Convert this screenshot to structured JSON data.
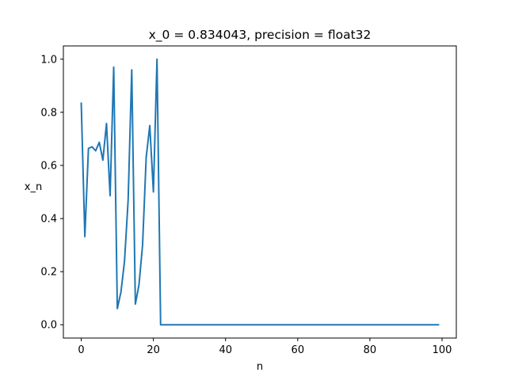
{
  "chart_data": {
    "type": "line",
    "title": "x_0 = 0.834043, precision = float32",
    "xlabel": "n",
    "ylabel": "x_n",
    "xlim": [
      -4.95,
      103.95
    ],
    "ylim": [
      -0.05,
      1.05
    ],
    "xticks": [
      0,
      20,
      40,
      60,
      80,
      100
    ],
    "yticks": [
      0.0,
      0.2,
      0.4,
      0.6,
      0.8,
      1.0
    ],
    "xtick_labels": [
      "0",
      "20",
      "40",
      "60",
      "80",
      "100"
    ],
    "ytick_labels": [
      "0.0",
      "0.2",
      "0.4",
      "0.6",
      "0.8",
      "1.0"
    ],
    "grid": false,
    "series": [
      {
        "color": "#1f77b4",
        "x": [
          0,
          1,
          2,
          3,
          4,
          5,
          6,
          7,
          8,
          9,
          10,
          11,
          12,
          13,
          14,
          15,
          16,
          17,
          18,
          19,
          20,
          21,
          22,
          23,
          24,
          25,
          26,
          27,
          28,
          29,
          30,
          31,
          32,
          33,
          34,
          35,
          36,
          37,
          38,
          39,
          40,
          41,
          42,
          43,
          44,
          45,
          46,
          47,
          48,
          49,
          50,
          51,
          52,
          53,
          54,
          55,
          56,
          57,
          58,
          59,
          60,
          61,
          62,
          63,
          64,
          65,
          66,
          67,
          68,
          69,
          70,
          71,
          72,
          73,
          74,
          75,
          76,
          77,
          78,
          79,
          80,
          81,
          82,
          83,
          84,
          85,
          86,
          87,
          88,
          89,
          90,
          91,
          92,
          93,
          94,
          95,
          96,
          97,
          98,
          99
        ],
        "y": [
          0.834,
          0.332,
          0.664,
          0.67,
          0.655,
          0.687,
          0.62,
          0.758,
          0.486,
          0.97,
          0.061,
          0.123,
          0.24,
          0.47,
          0.96,
          0.078,
          0.15,
          0.3,
          0.63,
          0.75,
          0.5,
          1.0,
          0.0,
          0.0,
          0.0,
          0.0,
          0.0,
          0.0,
          0.0,
          0.0,
          0.0,
          0.0,
          0.0,
          0.0,
          0.0,
          0.0,
          0.0,
          0.0,
          0.0,
          0.0,
          0.0,
          0.0,
          0.0,
          0.0,
          0.0,
          0.0,
          0.0,
          0.0,
          0.0,
          0.0,
          0.0,
          0.0,
          0.0,
          0.0,
          0.0,
          0.0,
          0.0,
          0.0,
          0.0,
          0.0,
          0.0,
          0.0,
          0.0,
          0.0,
          0.0,
          0.0,
          0.0,
          0.0,
          0.0,
          0.0,
          0.0,
          0.0,
          0.0,
          0.0,
          0.0,
          0.0,
          0.0,
          0.0,
          0.0,
          0.0,
          0.0,
          0.0,
          0.0,
          0.0,
          0.0,
          0.0,
          0.0,
          0.0,
          0.0,
          0.0,
          0.0,
          0.0,
          0.0,
          0.0,
          0.0,
          0.0,
          0.0,
          0.0,
          0.0,
          0.0
        ]
      }
    ]
  }
}
